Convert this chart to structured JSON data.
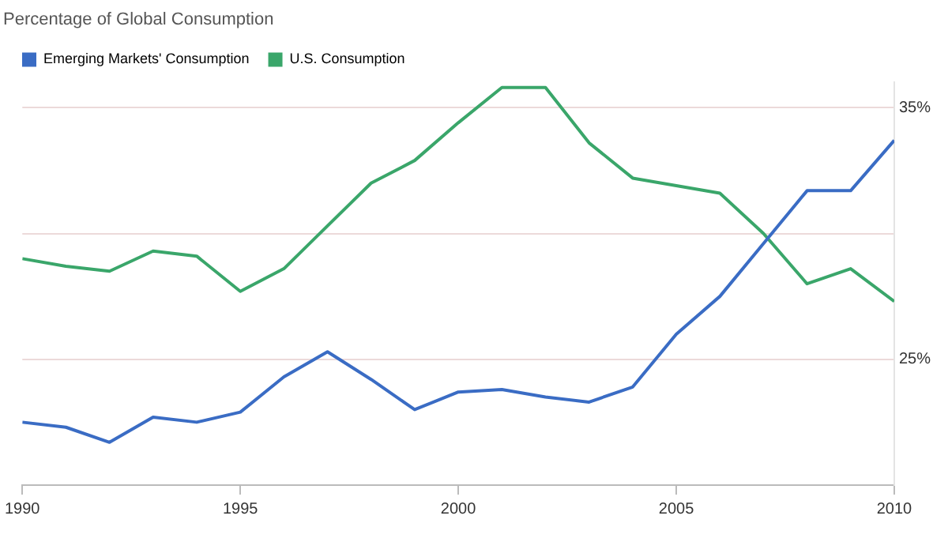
{
  "chart_data": {
    "type": "line",
    "title": "Percentage of Global Consumption",
    "x": [
      1990,
      1991,
      1992,
      1993,
      1994,
      1995,
      1996,
      1997,
      1998,
      1999,
      2000,
      2001,
      2002,
      2003,
      2004,
      2005,
      2006,
      2007,
      2008,
      2009,
      2010
    ],
    "series": [
      {
        "name": "Emerging Markets' Consumption",
        "color": "#3a6cc4",
        "values": [
          22.5,
          22.3,
          21.7,
          22.7,
          22.5,
          22.9,
          24.3,
          25.3,
          24.2,
          23.0,
          23.7,
          23.8,
          23.5,
          23.3,
          23.9,
          26.0,
          27.5,
          29.6,
          31.7,
          31.7,
          33.7
        ]
      },
      {
        "name": "U.S. Consumption",
        "color": "#3aa66a",
        "values": [
          29.0,
          28.7,
          28.5,
          29.3,
          29.1,
          27.7,
          28.6,
          30.3,
          32.0,
          32.9,
          34.4,
          35.8,
          35.8,
          33.6,
          32.2,
          31.9,
          31.6,
          30.0,
          28.0,
          28.6,
          27.3
        ]
      }
    ],
    "xlim": [
      1990,
      2010
    ],
    "xticks": [
      1990,
      1995,
      2000,
      2005,
      2010
    ],
    "ylim": [
      20,
      36
    ],
    "yticks": [
      {
        "value": 25,
        "label": "25%"
      },
      {
        "value": 30,
        "label": null
      },
      {
        "value": 35,
        "label": "35%"
      }
    ],
    "grid": "y",
    "legend": "top left",
    "marker": "none",
    "line_style": "solid"
  }
}
